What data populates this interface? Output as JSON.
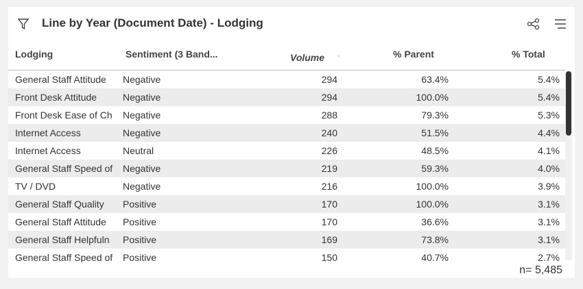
{
  "header": {
    "title": "Line by Year (Document Date) - Lodging"
  },
  "table": {
    "columns": [
      "Lodging",
      "Sentiment (3 Band...",
      "Volume",
      "% Parent",
      "% Total"
    ],
    "rows": [
      [
        "General Staff Attitude",
        "Negative",
        "294",
        "63.4%",
        "5.4%"
      ],
      [
        "Front Desk Attitude",
        "Negative",
        "294",
        "100.0%",
        "5.4%"
      ],
      [
        "Front Desk Ease of Ch",
        "Negative",
        "288",
        "79.3%",
        "5.3%"
      ],
      [
        "Internet Access",
        "Negative",
        "240",
        "51.5%",
        "4.4%"
      ],
      [
        "Internet Access",
        "Neutral",
        "226",
        "48.5%",
        "4.1%"
      ],
      [
        "General Staff Speed of",
        "Negative",
        "219",
        "59.3%",
        "4.0%"
      ],
      [
        "TV / DVD",
        "Negative",
        "216",
        "100.0%",
        "3.9%"
      ],
      [
        "General Staff Quality",
        "Positive",
        "170",
        "100.0%",
        "3.1%"
      ],
      [
        "General Staff Attitude",
        "Positive",
        "170",
        "36.6%",
        "3.1%"
      ],
      [
        "General Staff Helpfuln",
        "Positive",
        "169",
        "73.8%",
        "3.1%"
      ],
      [
        "General Staff Speed of",
        "Positive",
        "150",
        "40.7%",
        "2.7%"
      ]
    ]
  },
  "footer": {
    "count": "n= 5,485"
  }
}
